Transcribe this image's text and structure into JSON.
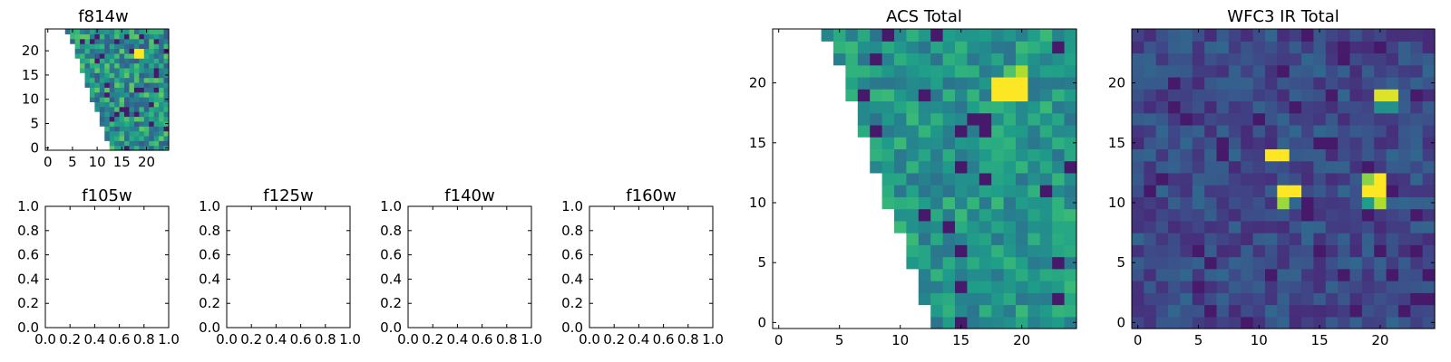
{
  "chart_data": [
    {
      "type": "heatmap",
      "title": "f814w",
      "xticks": [
        0,
        5,
        10,
        15,
        20
      ],
      "yticks": [
        0,
        5,
        10,
        15,
        20
      ],
      "xlim": [
        -0.5,
        24.5
      ],
      "ylim": [
        -0.5,
        24.5
      ],
      "colormap": "viridis",
      "masked_region": "lower-left triangle (no data)",
      "hot_pixel": {
        "x": [
          18,
          19
        ],
        "y": [
          19,
          20
        ]
      }
    },
    {
      "type": "empty",
      "title": "f105w",
      "xticks": [
        "0.0",
        "0.2",
        "0.4",
        "0.6",
        "0.8",
        "1.0"
      ],
      "yticks": [
        "0.0",
        "0.2",
        "0.4",
        "0.6",
        "0.8",
        "1.0"
      ],
      "xlim": [
        0,
        1
      ],
      "ylim": [
        0,
        1
      ]
    },
    {
      "type": "empty",
      "title": "f125w",
      "xticks": [
        "0.0",
        "0.2",
        "0.4",
        "0.6",
        "0.8",
        "1.0"
      ],
      "yticks": [
        "0.0",
        "0.2",
        "0.4",
        "0.6",
        "0.8",
        "1.0"
      ],
      "xlim": [
        0,
        1
      ],
      "ylim": [
        0,
        1
      ]
    },
    {
      "type": "empty",
      "title": "f140w",
      "xticks": [
        "0.0",
        "0.2",
        "0.4",
        "0.6",
        "0.8",
        "1.0"
      ],
      "yticks": [
        "0.0",
        "0.2",
        "0.4",
        "0.6",
        "0.8",
        "1.0"
      ],
      "xlim": [
        0,
        1
      ],
      "ylim": [
        0,
        1
      ]
    },
    {
      "type": "empty",
      "title": "f160w",
      "xticks": [
        "0.0",
        "0.2",
        "0.4",
        "0.6",
        "0.8",
        "1.0"
      ],
      "yticks": [
        "0.0",
        "0.2",
        "0.4",
        "0.6",
        "0.8",
        "1.0"
      ],
      "xlim": [
        0,
        1
      ],
      "ylim": [
        0,
        1
      ]
    },
    {
      "type": "heatmap",
      "title": "ACS Total",
      "xticks": [
        0,
        5,
        10,
        15,
        20
      ],
      "yticks": [
        0,
        5,
        10,
        15,
        20
      ],
      "xlim": [
        -0.5,
        24.5
      ],
      "ylim": [
        -0.5,
        24.5
      ],
      "colormap": "viridis",
      "masked_region": "lower-left triangle (no data)",
      "hot_pixels": [
        {
          "x": [
            18,
            20
          ],
          "y": [
            19,
            20
          ],
          "level": 1.0
        },
        {
          "x": [
            20,
            20
          ],
          "y": [
            21,
            21
          ],
          "level": 0.88
        },
        {
          "x": [
            19,
            19
          ],
          "y": [
            21,
            21
          ],
          "level": 0.72
        }
      ]
    },
    {
      "type": "heatmap",
      "title": "WFC3 IR Total",
      "xticks": [
        0,
        5,
        10,
        15,
        20
      ],
      "yticks": [
        0,
        5,
        10,
        15,
        20
      ],
      "xlim": [
        -0.5,
        24.5
      ],
      "ylim": [
        -0.5,
        24.5
      ],
      "colormap": "viridis",
      "hot_pixels": [
        {
          "x": [
            20,
            21
          ],
          "y": [
            19,
            19
          ],
          "level": 0.95
        },
        {
          "x": [
            20,
            21
          ],
          "y": [
            18,
            18
          ],
          "level": 0.5
        },
        {
          "x": [
            11,
            12
          ],
          "y": [
            14,
            14
          ],
          "level": 1.0
        },
        {
          "x": [
            12,
            13
          ],
          "y": [
            11,
            11
          ],
          "level": 1.0
        },
        {
          "x": [
            12,
            12
          ],
          "y": [
            10,
            10
          ],
          "level": 0.85
        },
        {
          "x": [
            20,
            20
          ],
          "y": [
            11,
            12
          ],
          "level": 1.0
        },
        {
          "x": [
            19,
            19
          ],
          "y": [
            11,
            11
          ],
          "level": 1.0
        },
        {
          "x": [
            19,
            19
          ],
          "y": [
            12,
            12
          ],
          "level": 0.82
        },
        {
          "x": [
            20,
            20
          ],
          "y": [
            10,
            10
          ],
          "level": 0.88
        },
        {
          "x": [
            19,
            19
          ],
          "y": [
            10,
            10
          ],
          "level": 0.55
        }
      ]
    }
  ]
}
